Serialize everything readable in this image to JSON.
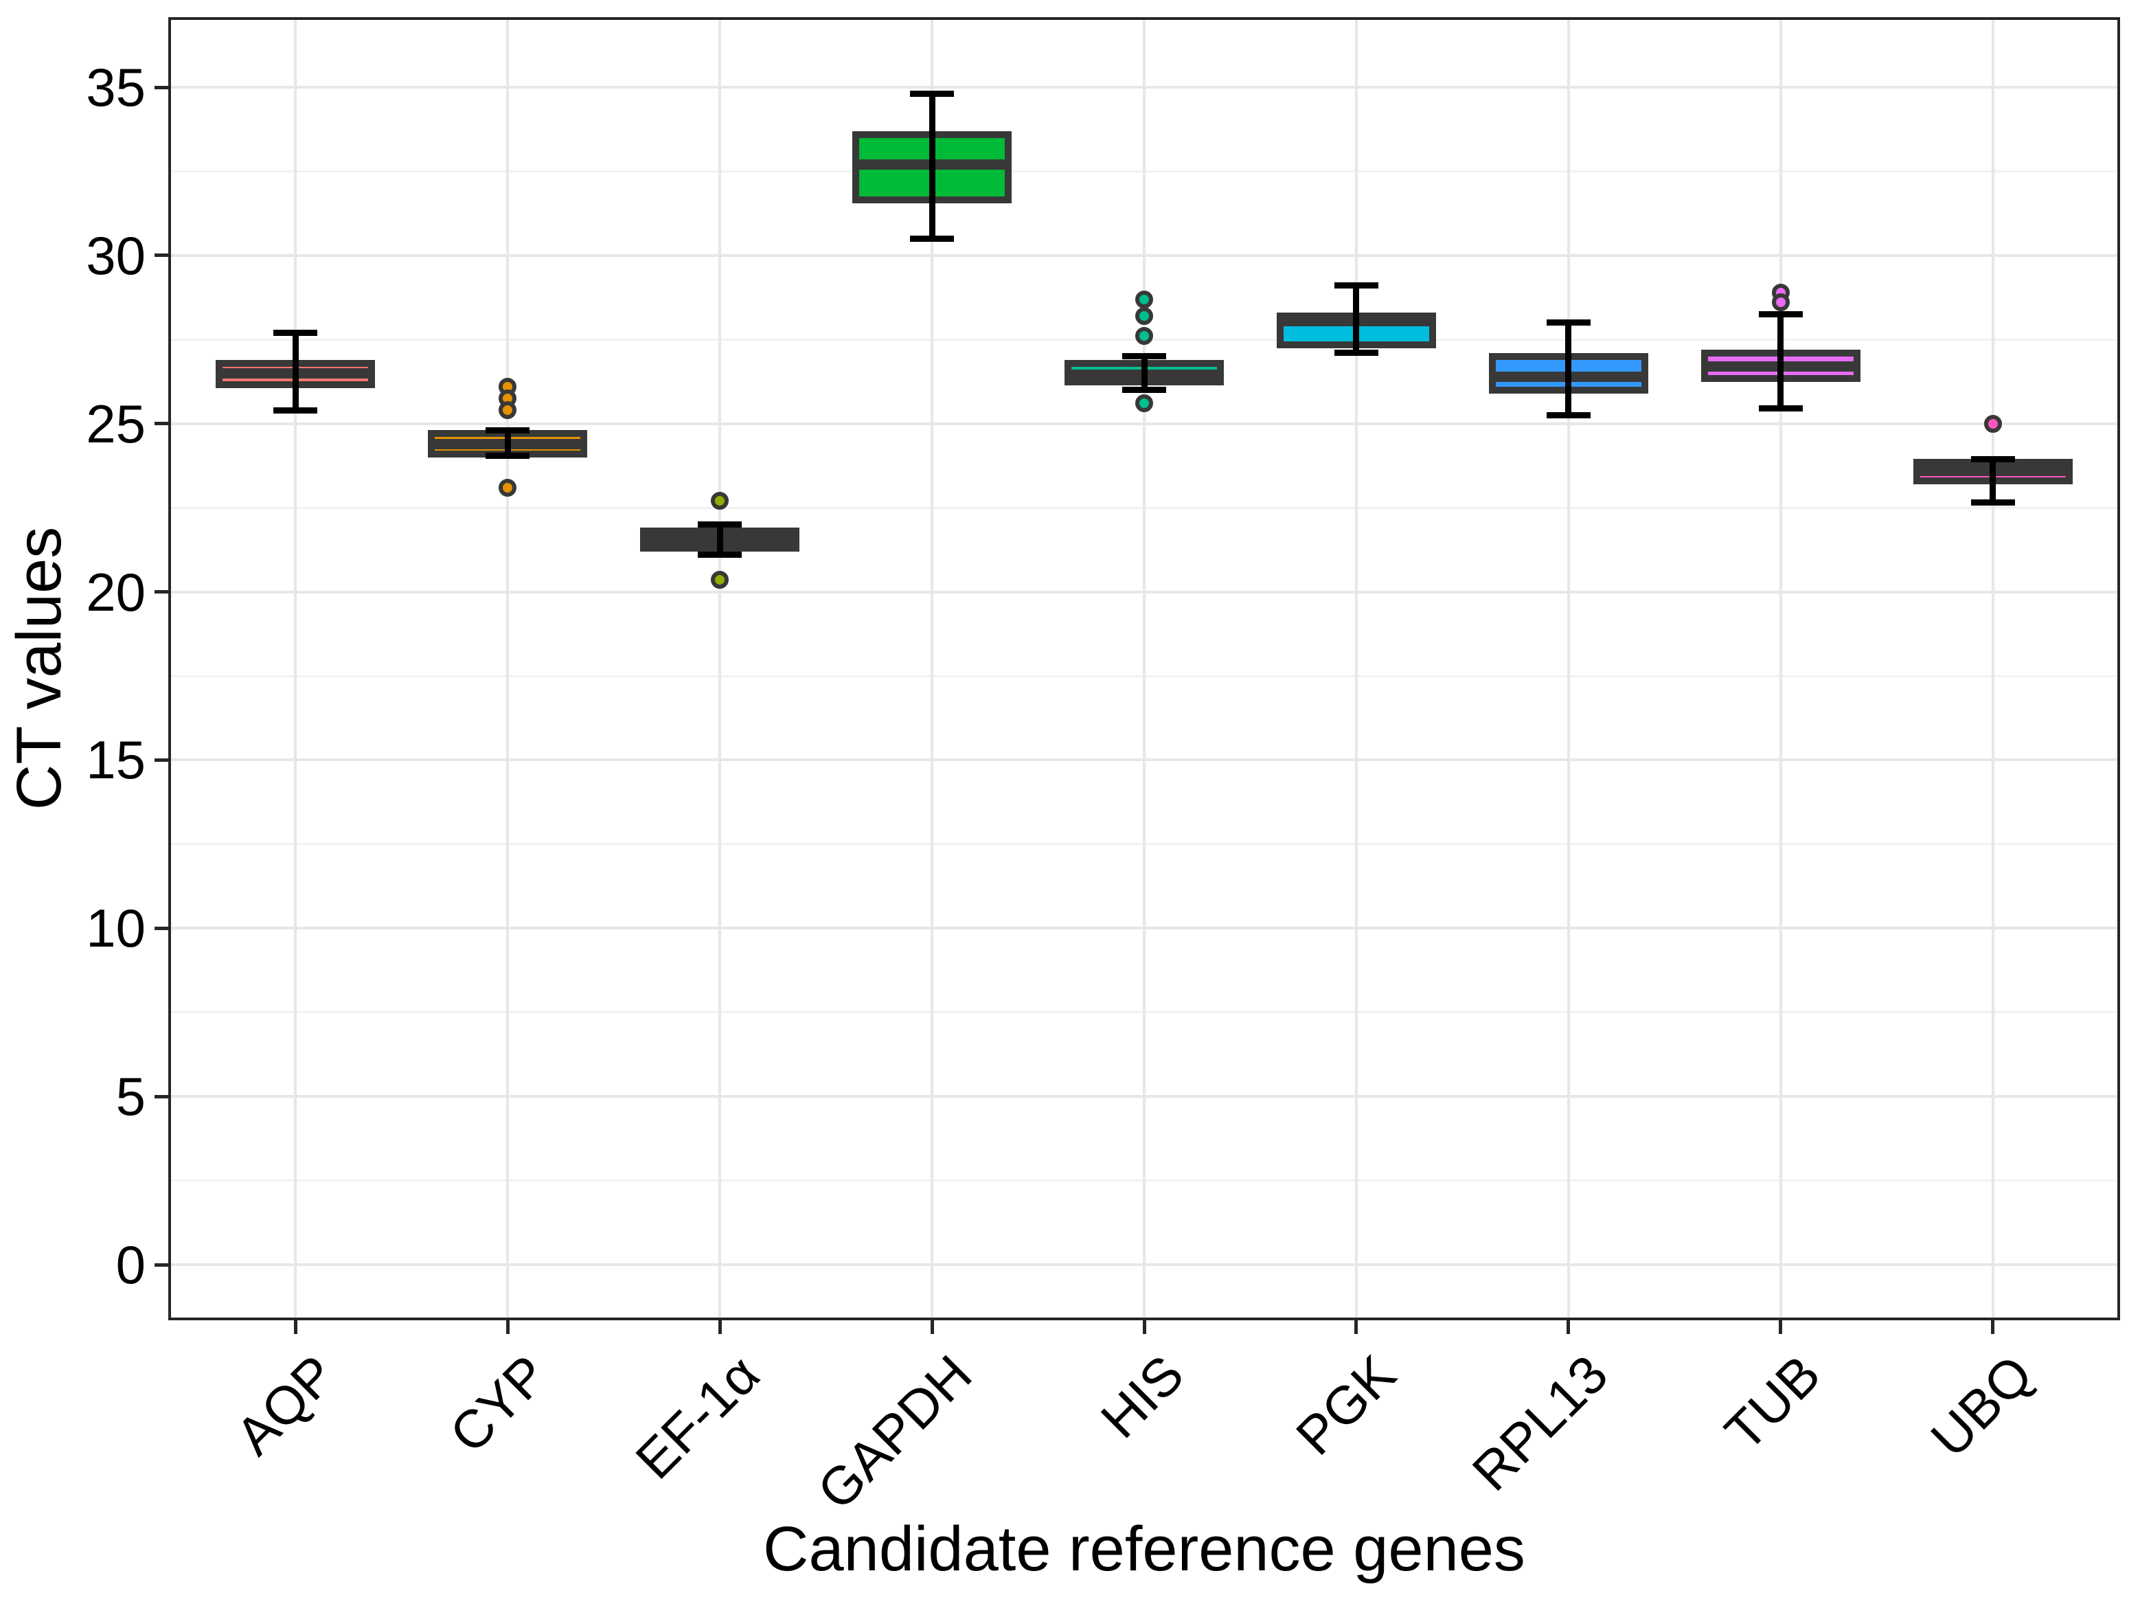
{
  "figure": {
    "x_axis_title": "Candidate reference genes",
    "y_axis_title": "CT values"
  },
  "chart_data": {
    "type": "boxplot",
    "title": "",
    "xlabel": "Candidate reference genes",
    "ylabel": "CT values",
    "x_categories": [
      "AQP",
      "CYP",
      "EF-1α",
      "GAPDH",
      "HIS",
      "PGK",
      "RPL13",
      "TUB",
      "UBQ"
    ],
    "y_axis": {
      "major_ticks": [
        0,
        5,
        10,
        15,
        20,
        25,
        30,
        35
      ],
      "minor_gridlines": [
        2.5,
        7.5,
        12.5,
        17.5,
        22.5,
        27.5,
        32.5
      ],
      "shown_range": [
        -1.6,
        37.0
      ],
      "grid": true,
      "legend": "none"
    },
    "series": [
      {
        "gene": "AQP",
        "color": "#F8766D",
        "whisker_low": 25.4,
        "q1": 26.15,
        "median": 26.5,
        "q3": 26.8,
        "whisker_high": 27.7,
        "outliers": []
      },
      {
        "gene": "CYP",
        "color": "#E39200",
        "whisker_low": 24.05,
        "q1": 24.1,
        "median": 24.4,
        "q3": 24.7,
        "whisker_high": 24.8,
        "outliers": [
          26.1,
          25.75,
          25.4,
          23.1
        ]
      },
      {
        "gene": "EF-1α",
        "color": "#93AA00",
        "whisker_low": 21.1,
        "q1": 21.3,
        "median": 21.55,
        "q3": 21.8,
        "whisker_high": 22.0,
        "outliers": [
          22.7,
          20.35
        ]
      },
      {
        "gene": "GAPDH",
        "color": "#00BA38",
        "whisker_low": 30.5,
        "q1": 31.65,
        "median": 32.7,
        "q3": 33.6,
        "whisker_high": 34.8,
        "outliers": []
      },
      {
        "gene": "HIS",
        "color": "#00BF8F",
        "whisker_low": 26.0,
        "q1": 26.25,
        "median": 26.45,
        "q3": 26.8,
        "whisker_high": 27.0,
        "outliers": [
          28.7,
          28.2,
          27.6,
          25.6
        ]
      },
      {
        "gene": "PGK",
        "color": "#00BCDE",
        "whisker_low": 27.1,
        "q1": 27.35,
        "median": 28.05,
        "q3": 28.2,
        "whisker_high": 29.1,
        "outliers": []
      },
      {
        "gene": "RPL13",
        "color": "#3399FF",
        "whisker_low": 25.25,
        "q1": 26.0,
        "median": 26.4,
        "q3": 27.0,
        "whisker_high": 28.0,
        "outliers": []
      },
      {
        "gene": "TUB",
        "color": "#E76BF3",
        "whisker_low": 25.45,
        "q1": 26.35,
        "median": 26.7,
        "q3": 27.1,
        "whisker_high": 28.25,
        "outliers": [
          28.9,
          28.6
        ]
      },
      {
        "gene": "UBQ",
        "color": "#FF55BE",
        "whisker_low": 22.65,
        "q1": 23.3,
        "median": 23.6,
        "q3": 23.85,
        "whisker_high": 23.95,
        "outliers": [
          25.0
        ]
      }
    ]
  }
}
